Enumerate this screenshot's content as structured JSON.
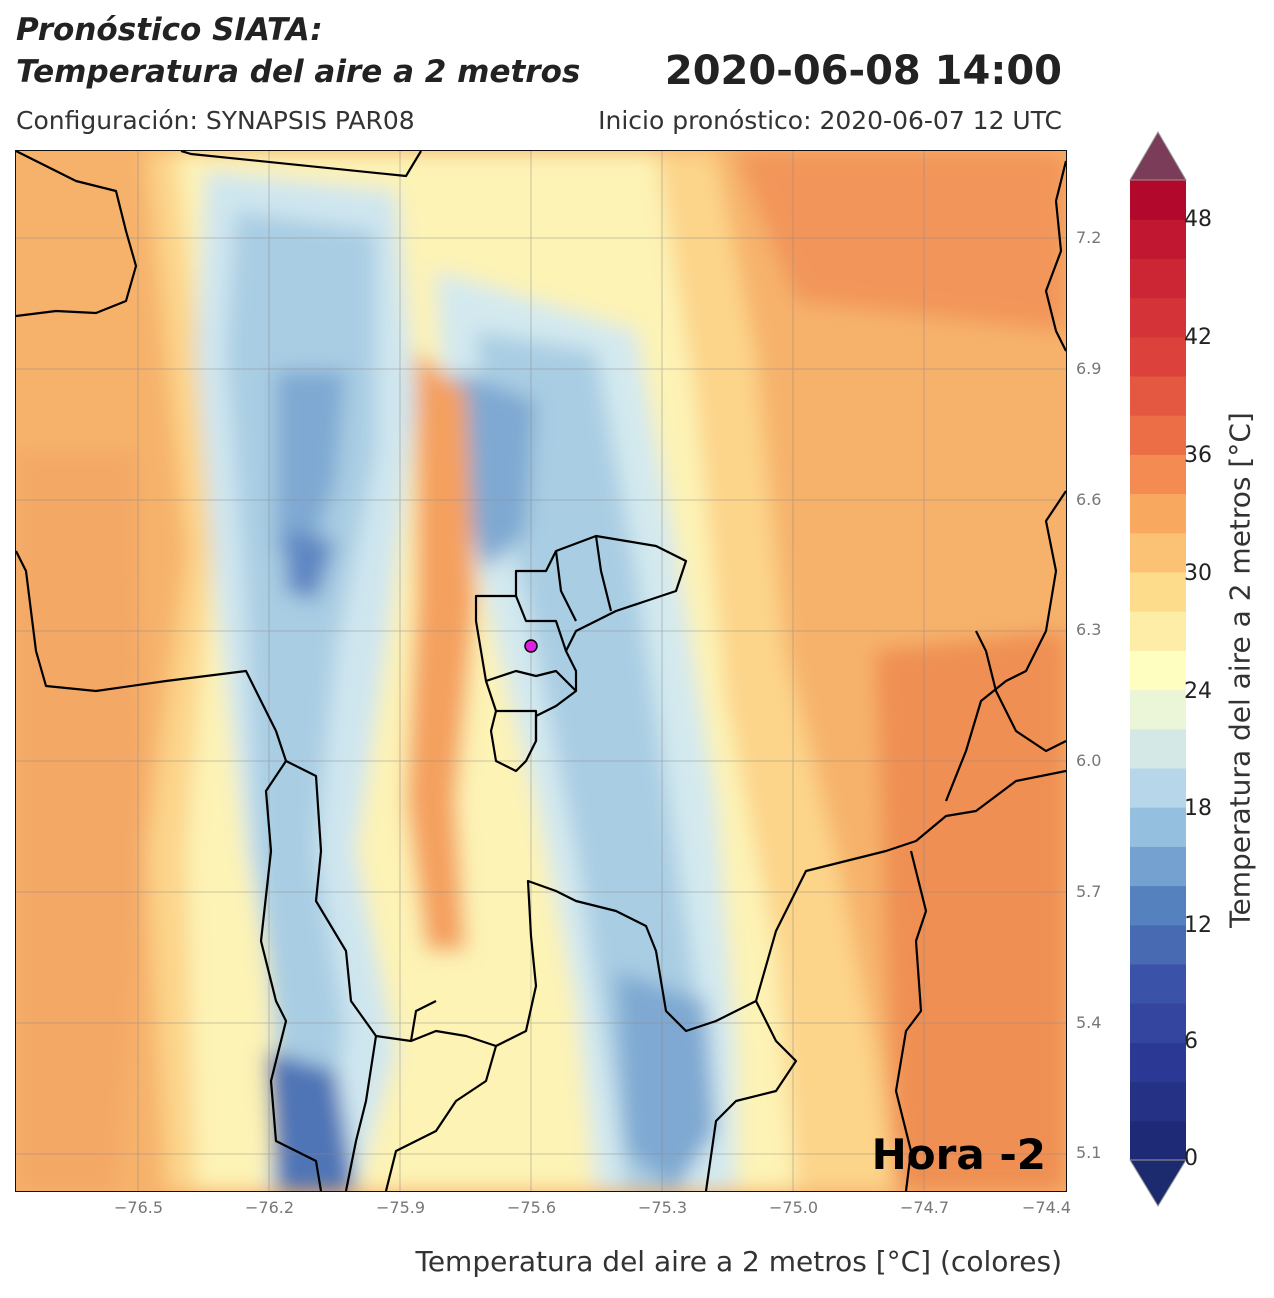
{
  "header": {
    "title_line1": "Pronóstico SIATA:",
    "title_line2": "Temperatura del aire a 2 metros",
    "valid_time": "2020-06-08 14:00",
    "configuration": "Configuración: SYNAPSIS PAR08",
    "forecast_start": "Inicio pronóstico: 2020-06-07 12 UTC"
  },
  "map": {
    "hour_label": "Hora -2",
    "x_ticks": [
      "−76.5",
      "−76.2",
      "−75.9",
      "−75.6",
      "−75.3",
      "−75.0",
      "−74.7",
      "−74.4"
    ],
    "y_ticks": [
      "7.2",
      "6.9",
      "6.6",
      "6.3",
      "6.0",
      "5.7",
      "5.4",
      "5.1"
    ],
    "xlabel": "Temperatura del aire a 2 metros [°C] (colores)",
    "marker_color": "#e020e0"
  },
  "colorbar": {
    "label": "Temperatura del aire a 2 metros [°C]",
    "ticks": [
      "48",
      "42",
      "36",
      "30",
      "24",
      "18",
      "12",
      "6",
      "0"
    ],
    "min": 0,
    "max": 50,
    "step": 2,
    "under_color": "#1c2a6e",
    "over_color": "#7a3c58"
  }
}
